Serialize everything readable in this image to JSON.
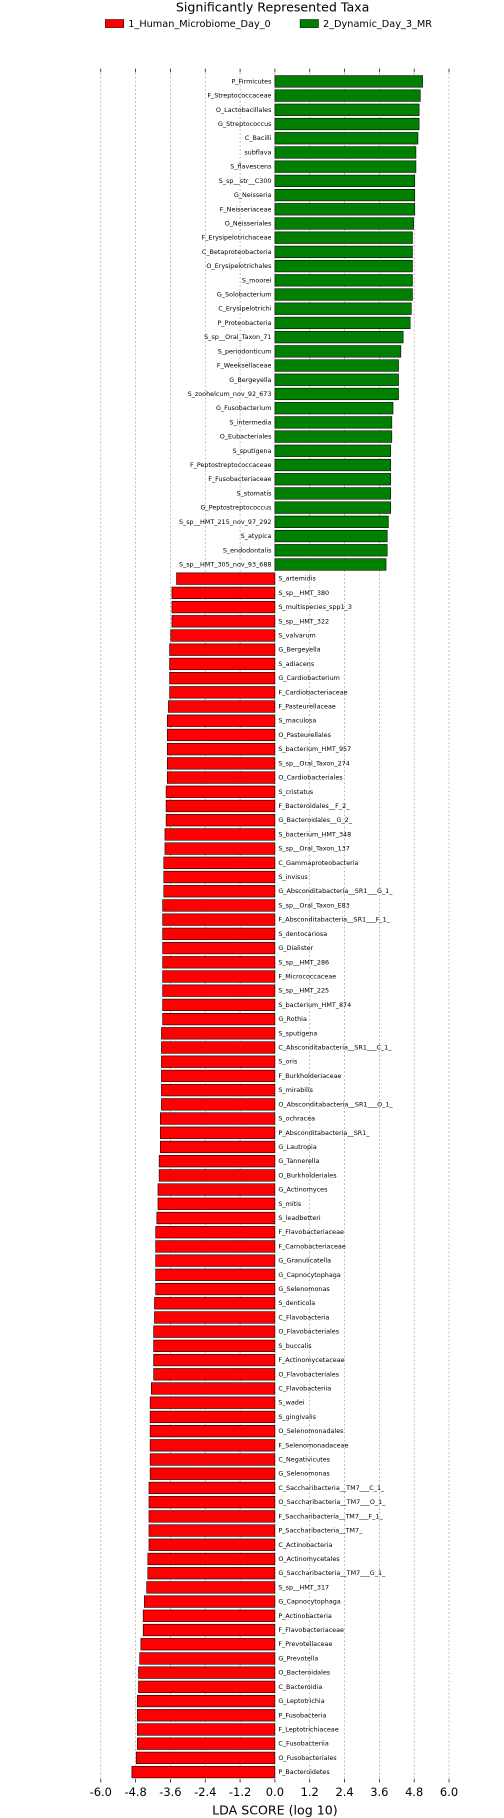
{
  "chart_data": {
    "type": "bar",
    "orientation": "horizontal",
    "title": "Significantly Represented Taxa",
    "x_label": "LDA SCORE (log 10)",
    "xlim": [
      -6.0,
      6.0
    ],
    "xticks": [
      {
        "value": -6.0,
        "label": "-6.0"
      },
      {
        "value": -4.8,
        "label": "-4.8"
      },
      {
        "value": -3.6,
        "label": "-3.6"
      },
      {
        "value": -2.4,
        "label": "-2.4"
      },
      {
        "value": -1.2,
        "label": "-1.2"
      },
      {
        "value": 0,
        "label": "0.0"
      },
      {
        "value": 1.2,
        "label": "1.2"
      },
      {
        "value": 2.4,
        "label": "2.4"
      },
      {
        "value": 3.6,
        "label": "3.6"
      },
      {
        "value": 4.8,
        "label": "4.8"
      },
      {
        "value": 6.0,
        "label": "6.0"
      }
    ],
    "grid": true,
    "legend_position": "top",
    "categories": [
      "P_Firmicutes",
      "F_Streptococcaceae",
      "O_Lactobacillales",
      "G_Streptococcus",
      "C_Bacilli",
      "subflava",
      "S_flavescens",
      "S_sp__str__C300",
      "G_Neisseria",
      "F_Neisseriaceae",
      "O_Neisseriales",
      "F_Erysipelotrichaceae",
      "C_Betaproteobacteria",
      "O_Erysipelotrichales",
      "S_moorei",
      "G_Solobacterium",
      "C_Erysipelotrichi",
      "P_Proteobacteria",
      "S_sp__Oral_Taxon_71",
      "S_periodonticum",
      "F_Weeksellaceae",
      "G_Bergeyella",
      "S_zoohelcum_nov_92_673",
      "G_Fusobacterium",
      "S_intermedia",
      "O_Eubacteriales",
      "S_sputigena",
      "F_Peptostreptococcaceae",
      "F_Fusobacteriaceae",
      "S_stomatis",
      "G_Peptostreptococcus",
      "S_sp__HMT_215_nov_97_292",
      "S_atypica",
      "S_endodontalis",
      "S_sp__HMT_305_nov_93_688",
      "S_artemidis",
      "S_sp__HMT_380",
      "S_multispecies_spp1_3",
      "S_sp__HMT_322",
      "S_valvarum",
      "G_Bergeyella",
      "S_adiacens",
      "G_Cardiobacterium",
      "F_Cardiobacteriaceae",
      "F_Pasteurellaceae",
      "S_maculosa",
      "O_Pasteurellales",
      "S_bacterium_HMT_957",
      "S_sp__Oral_Taxon_274",
      "O_Cardiobacteriales",
      "S_cristatus",
      "F_Bacteroidales__F_2_",
      "G_Bacteroidales__G_2_",
      "S_bacterium_HMT_348",
      "S_sp__Oral_Taxon_137",
      "C_Gammaproteobacteria",
      "S_invisus",
      "G_Absconditabacteria__SR1___G_1_",
      "S_sp__Oral_Taxon_E83",
      "F_Absconditabacteria__SR1___F_1_",
      "S_dentocariosa",
      "G_Dialister",
      "S_sp__HMT_286",
      "F_Micrococcaceae",
      "S_sp__HMT_225",
      "S_bacterium_HMT_874",
      "G_Rothia",
      "S_sputigena",
      "C_Absconditabacteria__SR1___C_1_",
      "S_oris",
      "F_Burkholderiaceae",
      "S_mirabilis",
      "O_Absconditabacteria__SR1___O_1_",
      "S_ochracea",
      "P_Absconditabacteria__SR1_",
      "G_Lautropia",
      "G_Tannerella",
      "O_Burkholderiales",
      "G_Actinomyces",
      "S_mitis",
      "S_leadbetteri",
      "F_Flavobacteriaceae",
      "F_Carnobacteriaceae",
      "G_Granulicatella",
      "G_Capnocytophaga",
      "G_Selenomonas",
      "S_denticola",
      "C_Flavobacteria",
      "O_Flavobacteriales",
      "S_buccalis",
      "F_Actinomycetaceae",
      "O_Flavobacteriales",
      "C_Flavobacteriia",
      "S_wadei",
      "S_gingivalis",
      "O_Selenomonadales",
      "F_Selenomonadaceae",
      "C_Negativicutes",
      "G_Selenomonas",
      "C_Saccharibacteria__TM7___C_1_",
      "O_Saccharibacteria__TM7___O_1_",
      "F_Saccharibacteria__TM7___F_1_",
      "P_Saccharibacteria__TM7_",
      "C_Actinobacteria",
      "O_Actinomycetales",
      "G_Saccharibacteria__TM7___G_1_",
      "S_sp__HMT_317",
      "G_Capnocytophaga",
      "P_Actinobacteria",
      "F_Flavobacteriaceae",
      "F_Prevotellaceae",
      "G_Prevotella",
      "O_Bacteroidales",
      "C_Bacteroidia",
      "G_Leptotrichia",
      "P_Fusobacteria",
      "F_Leptotrichiaceae",
      "C_Fusobacteriia",
      "O_Fusobacteriales",
      "P_Bacteroidetes"
    ],
    "series": [
      {
        "name": "2_Dynamic_Day_3_MR",
        "color": "#008000",
        "values": [
          5.09,
          5.01,
          4.97,
          4.97,
          4.93,
          4.86,
          4.86,
          4.82,
          4.82,
          4.82,
          4.78,
          4.74,
          4.74,
          4.74,
          4.74,
          4.74,
          4.7,
          4.66,
          4.42,
          4.34,
          4.26,
          4.26,
          4.26,
          4.07,
          4.03,
          4.03,
          3.99,
          3.99,
          3.99,
          3.99,
          3.99,
          3.91,
          3.87,
          3.87,
          3.83,
          null,
          null,
          null,
          null,
          null,
          null,
          null,
          null,
          null,
          null,
          null,
          null,
          null,
          null,
          null,
          null,
          null,
          null,
          null,
          null,
          null,
          null,
          null,
          null,
          null,
          null,
          null,
          null,
          null,
          null,
          null,
          null,
          null,
          null,
          null,
          null,
          null,
          null,
          null,
          null,
          null,
          null,
          null,
          null,
          null,
          null,
          null,
          null,
          null,
          null,
          null,
          null,
          null,
          null,
          null,
          null,
          null,
          null,
          null,
          null,
          null,
          null,
          null,
          null,
          null,
          null,
          null,
          null,
          null,
          null,
          null,
          null,
          null,
          null,
          null,
          null,
          null,
          null,
          null,
          null,
          null,
          null,
          null,
          null,
          null
        ]
      },
      {
        "name": "1_Human_Microbiome_Day_0",
        "color": "#ff0000",
        "values": [
          null,
          null,
          null,
          null,
          null,
          null,
          null,
          null,
          null,
          null,
          null,
          null,
          null,
          null,
          null,
          null,
          null,
          null,
          null,
          null,
          null,
          null,
          null,
          null,
          null,
          null,
          null,
          null,
          null,
          null,
          null,
          null,
          null,
          null,
          null,
          -3.39,
          -3.55,
          -3.55,
          -3.55,
          -3.59,
          -3.63,
          -3.63,
          -3.63,
          -3.63,
          -3.67,
          -3.71,
          -3.71,
          -3.71,
          -3.71,
          -3.71,
          -3.75,
          -3.75,
          -3.75,
          -3.79,
          -3.79,
          -3.83,
          -3.83,
          -3.83,
          -3.87,
          -3.87,
          -3.87,
          -3.87,
          -3.87,
          -3.87,
          -3.87,
          -3.87,
          -3.87,
          -3.91,
          -3.91,
          -3.91,
          -3.91,
          -3.91,
          -3.91,
          -3.95,
          -3.95,
          -3.95,
          -3.99,
          -3.99,
          -4.03,
          -4.03,
          -4.07,
          -4.11,
          -4.11,
          -4.11,
          -4.11,
          -4.11,
          -4.15,
          -4.15,
          -4.18,
          -4.18,
          -4.18,
          -4.18,
          -4.26,
          -4.3,
          -4.3,
          -4.3,
          -4.3,
          -4.3,
          -4.3,
          -4.34,
          -4.34,
          -4.34,
          -4.34,
          -4.34,
          -4.38,
          -4.38,
          -4.42,
          -4.5,
          -4.54,
          -4.54,
          -4.62,
          -4.66,
          -4.7,
          -4.7,
          -4.74,
          -4.74,
          -4.74,
          -4.74,
          -4.78,
          -4.93
        ]
      }
    ]
  }
}
